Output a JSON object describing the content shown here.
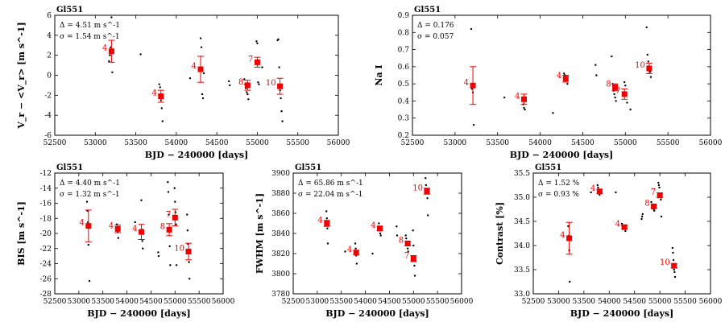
{
  "chart_data": [
    {
      "type": "scatter",
      "title": "Gl551",
      "xlabel": "BJD − 240000 [days]",
      "ylabel": "V_r − <V_r> [m s^-1]",
      "xlim": [
        52500,
        56000
      ],
      "ylim": [
        -6,
        6
      ],
      "xticks": [
        52500,
        53000,
        53500,
        54000,
        54500,
        55000,
        55500,
        56000
      ],
      "yticks": [
        -6,
        -4,
        -2,
        0,
        2,
        4,
        6
      ],
      "annotations": [
        "Δ = 4.51 m s^-1",
        "σ = 1.54 m s^-1"
      ],
      "raw_points": {
        "x": [
          53170,
          53180,
          53190,
          53200,
          53210,
          53560,
          53790,
          53800,
          53810,
          53820,
          53830,
          54170,
          54300,
          54310,
          54320,
          54330,
          54340,
          54650,
          54660,
          54840,
          54850,
          54860,
          54870,
          54880,
          54890,
          54990,
          55000,
          55010,
          55020,
          55060,
          55250,
          55260,
          55270,
          55280,
          55290,
          55300,
          55310
        ],
        "y": [
          1.4,
          2.0,
          2.8,
          5.8,
          0.3,
          2.1,
          -0.9,
          -1.2,
          -2.5,
          -3.3,
          -4.6,
          -0.3,
          3.7,
          2.8,
          -1.9,
          -2.3,
          0.2,
          -0.6,
          -1.0,
          -0.4,
          -0.9,
          -1.3,
          -1.7,
          -1.9,
          -2.4,
          3.4,
          3.2,
          -0.7,
          -0.9,
          0.8,
          3.5,
          3.6,
          0.8,
          -1.5,
          -2.3,
          -3.6,
          -4.6
        ]
      },
      "binned": {
        "x": [
          53200,
          53810,
          54300,
          54880,
          55000,
          55280
        ],
        "y": [
          2.4,
          -2.1,
          0.6,
          -1.0,
          1.3,
          -1.1
        ],
        "err": [
          1.1,
          0.6,
          1.3,
          0.5,
          0.5,
          0.8
        ],
        "labels": [
          "4",
          "4",
          "4",
          "8",
          "7",
          "10"
        ]
      }
    },
    {
      "type": "scatter",
      "title": "Gl551",
      "xlabel": "BJD − 240000 [days]",
      "ylabel": "Na I",
      "xlim": [
        52500,
        56000
      ],
      "ylim": [
        0.2,
        0.9
      ],
      "xticks": [
        52500,
        53000,
        53500,
        54000,
        54500,
        55000,
        55500,
        56000
      ],
      "yticks": [
        0.2,
        0.3,
        0.4,
        0.5,
        0.6,
        0.7,
        0.8,
        0.9
      ],
      "annotations": [
        "Δ = 0.176",
        "σ = 0.057"
      ],
      "raw_points": {
        "x": [
          53190,
          53200,
          53210,
          53220,
          53580,
          53790,
          53800,
          53810,
          53820,
          54150,
          54280,
          54290,
          54300,
          54310,
          54320,
          54650,
          54660,
          54840,
          54850,
          54860,
          54870,
          54880,
          54890,
          54990,
          55000,
          55010,
          55020,
          55060,
          55250,
          55260,
          55270,
          55280,
          55290,
          55300
        ],
        "y": [
          0.82,
          0.47,
          0.45,
          0.26,
          0.42,
          0.4,
          0.38,
          0.36,
          0.35,
          0.33,
          0.56,
          0.55,
          0.54,
          0.52,
          0.5,
          0.61,
          0.55,
          0.66,
          0.5,
          0.46,
          0.44,
          0.42,
          0.4,
          0.51,
          0.49,
          0.44,
          0.39,
          0.35,
          0.83,
          0.67,
          0.63,
          0.6,
          0.57,
          0.54
        ]
      },
      "binned": {
        "x": [
          53210,
          53810,
          54300,
          54880,
          54990,
          55280
        ],
        "y": [
          0.49,
          0.41,
          0.53,
          0.48,
          0.44,
          0.59
        ],
        "err": [
          0.11,
          0.03,
          0.02,
          0.02,
          0.03,
          0.03
        ],
        "labels": [
          "4",
          "4",
          "4",
          "8",
          "7",
          "10"
        ]
      }
    },
    {
      "type": "scatter",
      "title": "Gl551",
      "xlabel": "BJD − 240000 [days]",
      "ylabel": "BIS [m s^-1]",
      "xlim": [
        52500,
        56000
      ],
      "ylim": [
        -28,
        -12
      ],
      "xticks": [
        52500,
        53000,
        53500,
        54000,
        54500,
        55000,
        55500,
        56000
      ],
      "yticks": [
        -28,
        -26,
        -24,
        -22,
        -20,
        -18,
        -16,
        -14,
        -12
      ],
      "annotations": [
        "Δ = 4.40 m s^-1",
        "σ = 1.32 m s^-1"
      ],
      "raw_points": {
        "x": [
          53170,
          53180,
          53190,
          53200,
          53220,
          53790,
          53800,
          53810,
          53820,
          54170,
          54300,
          54310,
          54320,
          54330,
          54650,
          54660,
          54850,
          54860,
          54870,
          54880,
          54890,
          54900,
          54990,
          55000,
          55010,
          55020,
          55030,
          55250,
          55260,
          55270,
          55280,
          55290,
          55300
        ],
        "y": [
          -15.8,
          -17.0,
          -18.5,
          -21.5,
          -26.3,
          -18.8,
          -19.2,
          -19.8,
          -20.6,
          -18.5,
          -15.6,
          -19.5,
          -21.0,
          -22.0,
          -22.5,
          -23.0,
          -13.2,
          -14.5,
          -17.5,
          -19.6,
          -21.7,
          -24.2,
          -14.0,
          -15.8,
          -17.2,
          -18.8,
          -24.2,
          -17.5,
          -19.6,
          -21.4,
          -22.5,
          -23.8,
          -26.0
        ]
      },
      "binned": {
        "x": [
          53200,
          53810,
          54300,
          54880,
          55000,
          55280
        ],
        "y": [
          -19.0,
          -19.4,
          -19.8,
          -19.5,
          -17.9,
          -22.4
        ],
        "err": [
          2.1,
          0.5,
          1.0,
          0.8,
          1.1,
          1.1
        ],
        "labels": [
          "4",
          "4",
          "4",
          "8",
          "7",
          "10"
        ]
      }
    },
    {
      "type": "scatter",
      "title": "Gl551",
      "xlabel": "BJD − 240000 [days]",
      "ylabel": "FWHM [m s^-1]",
      "xlim": [
        52500,
        56000
      ],
      "ylim": [
        3780,
        3900
      ],
      "xticks": [
        52500,
        53000,
        53500,
        54000,
        54500,
        55000,
        55500,
        56000
      ],
      "yticks": [
        3780,
        3800,
        3820,
        3840,
        3860,
        3880,
        3900
      ],
      "annotations": [
        "Δ = 65.86 m s^-1",
        "σ = 22.04 m s^-1"
      ],
      "raw_points": {
        "x": [
          53190,
          53200,
          53210,
          53220,
          53580,
          53790,
          53800,
          53810,
          53820,
          54150,
          54280,
          54290,
          54300,
          54310,
          54320,
          54650,
          54660,
          54840,
          54850,
          54860,
          54870,
          54880,
          54890,
          54990,
          55000,
          55010,
          55020,
          55030,
          55250,
          55260,
          55270,
          55280,
          55290,
          55300
        ],
        "y": [
          3862,
          3855,
          3845,
          3830,
          3822,
          3830,
          3825,
          3818,
          3810,
          3820,
          3850,
          3846,
          3843,
          3840,
          3838,
          3847,
          3838,
          3838,
          3835,
          3832,
          3828,
          3825,
          3822,
          3843,
          3828,
          3815,
          3808,
          3798,
          3895,
          3888,
          3883,
          3880,
          3875,
          3858
        ]
      },
      "binned": {
        "x": [
          53200,
          53810,
          54300,
          54880,
          55000,
          55280
        ],
        "y": [
          3850,
          3821,
          3845,
          3830,
          3815,
          3882
        ],
        "err": [
          3,
          2,
          2,
          2,
          3,
          3
        ],
        "labels": [
          "4",
          "4",
          "4",
          "8",
          "7",
          "10"
        ]
      }
    },
    {
      "type": "scatter",
      "title": "Gl551",
      "xlabel": "BJD − 240000 [days]",
      "ylabel": "Contrast [%]",
      "xlim": [
        52500,
        56000
      ],
      "ylim": [
        33.0,
        35.5
      ],
      "xticks": [
        52500,
        53000,
        53500,
        54000,
        54500,
        55000,
        55500,
        56000
      ],
      "yticks": [
        33.0,
        33.5,
        34.0,
        34.5,
        35.0,
        35.5
      ],
      "annotations": [
        "Δ = 1.52 %",
        "σ = 0.93 %"
      ],
      "raw_points": {
        "x": [
          53190,
          53200,
          53210,
          53220,
          53640,
          53770,
          53780,
          53790,
          53800,
          53810,
          54130,
          54250,
          54260,
          54280,
          54300,
          54320,
          54640,
          54650,
          54660,
          54830,
          54840,
          54850,
          54860,
          54870,
          54880,
          54890,
          54970,
          54980,
          54990,
          55000,
          55010,
          55020,
          55030,
          55250,
          55260,
          55270,
          55280,
          55290,
          55300
        ],
        "y": [
          34.4,
          34.2,
          33.9,
          33.25,
          35.1,
          35.25,
          35.2,
          35.15,
          35.1,
          35.05,
          35.1,
          34.45,
          34.4,
          34.38,
          34.35,
          34.3,
          34.55,
          34.6,
          34.65,
          34.9,
          34.85,
          34.82,
          34.8,
          34.78,
          34.75,
          34.72,
          35.3,
          35.25,
          35.2,
          35.05,
          35.0,
          34.95,
          34.6,
          33.95,
          33.85,
          33.7,
          33.5,
          33.45,
          33.35
        ]
      },
      "binned": {
        "x": [
          53210,
          53810,
          54300,
          54880,
          55000,
          55280
        ],
        "y": [
          34.15,
          35.12,
          34.38,
          34.81,
          35.04,
          33.58
        ],
        "err": [
          0.33,
          0.04,
          0.03,
          0.03,
          0.05,
          0.04
        ],
        "labels": [
          "4",
          "4",
          "4",
          "8",
          "7",
          "10"
        ]
      }
    }
  ]
}
